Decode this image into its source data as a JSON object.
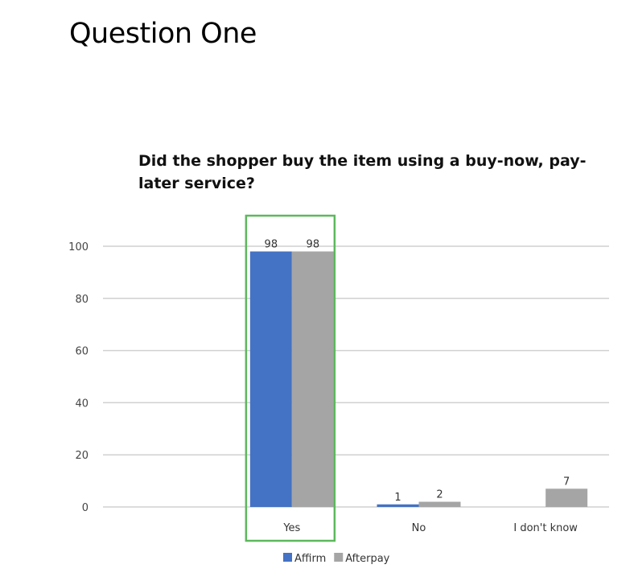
{
  "page": {
    "heading": "Question One"
  },
  "chart_data": {
    "type": "bar",
    "title": "Did the shopper buy the item using a buy-now, pay-later service?",
    "categories": [
      "Yes",
      "No",
      "I don't know"
    ],
    "series": [
      {
        "name": "Affirm",
        "values": [
          98,
          1,
          0
        ],
        "color": "#4472C4"
      },
      {
        "name": "Afterpay",
        "values": [
          98,
          2,
          7
        ],
        "color": "#A5A5A5"
      }
    ],
    "data_labels": [
      [
        "98",
        "1",
        ""
      ],
      [
        "98",
        "2",
        "7"
      ]
    ],
    "yticks": [
      0,
      20,
      40,
      60,
      80,
      100
    ],
    "ylim": [
      0,
      100
    ],
    "grid": true,
    "legend": "bottom",
    "highlight": {
      "category": "Yes",
      "color": "#5CB85C"
    }
  }
}
